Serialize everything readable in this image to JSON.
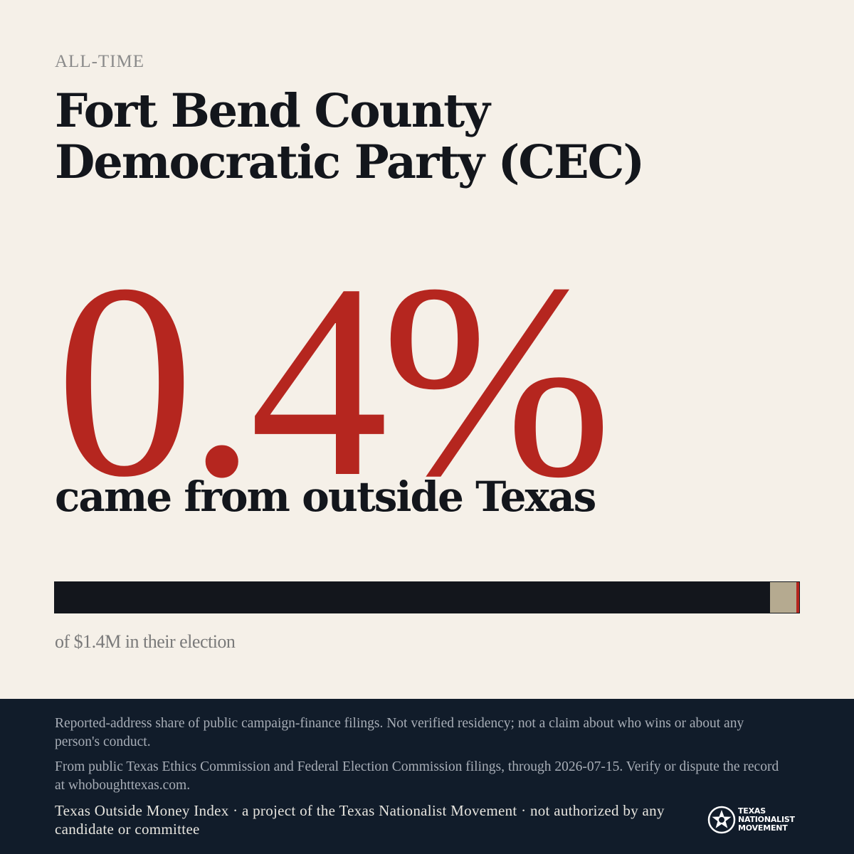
{
  "header": {
    "eyebrow": "ALL-TIME",
    "title": "Fort Bend County Democratic Party (CEC)"
  },
  "headline": {
    "percent": "0.4%",
    "caption": "came from outside Texas"
  },
  "share_bar": {
    "outside_fraction": 0.004,
    "unknown_fraction": 0.035,
    "colors": {
      "in_state": "#13161c",
      "unknown": "#b5aa90",
      "outside": "#b5261f"
    }
  },
  "total": {
    "caption": "of $1.4M in their election"
  },
  "footer": {
    "disclaimer": "Reported-address share of public campaign-finance filings. Not verified residency; not a claim about who wins or about any person's conduct.",
    "source": "From public Texas Ethics Commission and Federal Election Commission filings, through 2026-07-15. Verify or dispute the record at whoboughttexas.com.",
    "credit": "Texas Outside Money Index · a project of the Texas Nationalist Movement · not authorized by any candidate or committee",
    "logo": {
      "line1": "TEXAS",
      "line2": "NATIONALIST",
      "line3": "MOVEMENT",
      "icon": "star-seal-icon"
    }
  }
}
